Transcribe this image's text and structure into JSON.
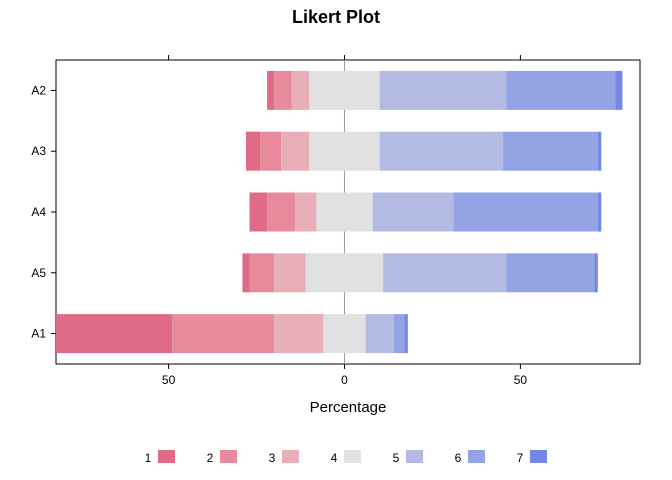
{
  "chart_data": {
    "type": "bar",
    "subtype": "diverging-stacked-likert",
    "title": "Likert Plot",
    "xlabel": "Percentage",
    "ylabel": "",
    "xlim": [
      -82,
      84
    ],
    "x_ticks": [
      -50,
      0,
      50
    ],
    "x_tick_labels": [
      "50",
      "0",
      "50"
    ],
    "grid": false,
    "legend_position": "bottom",
    "categories": [
      "A2",
      "A3",
      "A4",
      "A5",
      "A1"
    ],
    "levels": [
      "1",
      "2",
      "3",
      "4",
      "5",
      "6",
      "7"
    ],
    "colors": [
      "#e06b86",
      "#e78b9c",
      "#e9afb9",
      "#e1e1e1",
      "#b3bae4",
      "#93a3e4",
      "#7287e6"
    ],
    "series": [
      {
        "name": "1",
        "values": [
          2,
          4,
          5,
          2,
          33
        ]
      },
      {
        "name": "2",
        "values": [
          5,
          6,
          8,
          7,
          29
        ]
      },
      {
        "name": "3",
        "values": [
          5,
          8,
          6,
          9,
          14
        ]
      },
      {
        "name": "4",
        "values": [
          20,
          20,
          16,
          22,
          12
        ]
      },
      {
        "name": "5",
        "values": [
          36,
          35,
          23,
          35,
          8
        ]
      },
      {
        "name": "6",
        "values": [
          31,
          27,
          41,
          25,
          3
        ]
      },
      {
        "name": "7",
        "values": [
          2,
          1,
          1,
          1,
          1
        ]
      }
    ]
  }
}
